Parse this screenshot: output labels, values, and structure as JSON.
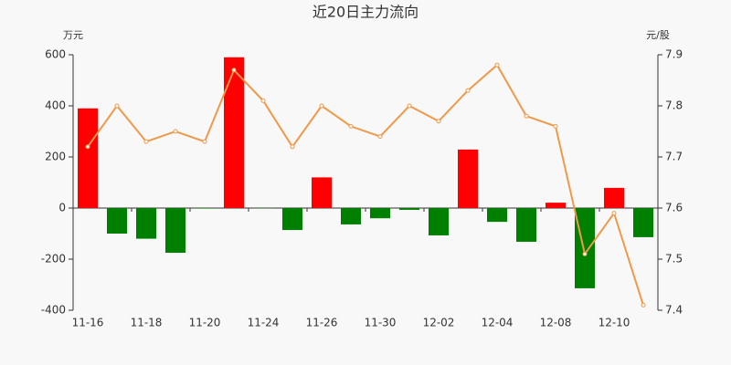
{
  "chart_data": {
    "type": "bar",
    "title": "近20日主力流向",
    "y_label": "万元",
    "y2_label": "元/股",
    "categories": [
      "11-16",
      null,
      "11-18",
      null,
      "11-20",
      null,
      "11-24",
      null,
      "11-26",
      null,
      "11-30",
      null,
      "12-02",
      null,
      "12-04",
      null,
      "12-08",
      null,
      "12-10",
      null
    ],
    "series": [
      {
        "type": "bar",
        "positive_color": "#ff0000",
        "negative_color": "#008000",
        "values": [
          390,
          -100,
          -120,
          -175,
          -2,
          590,
          -1,
          -86,
          120,
          -64,
          -40,
          -7,
          -107,
          229,
          -54,
          -132,
          21,
          -314,
          79,
          -114
        ]
      },
      {
        "type": "line",
        "axis": "y2",
        "color": "#f0994a",
        "values": [
          7.72,
          7.8,
          7.73,
          7.75,
          7.73,
          7.87,
          7.81,
          7.72,
          7.8,
          7.76,
          7.74,
          7.8,
          7.77,
          7.83,
          7.88,
          7.78,
          7.76,
          7.51,
          7.59,
          7.41
        ]
      }
    ],
    "ylim": [
      -400,
      600
    ],
    "yticks": [
      -400,
      -200,
      0,
      200,
      400,
      600
    ],
    "y2lim": [
      7.4,
      7.9
    ],
    "y2ticks": [
      7.4,
      7.5,
      7.6,
      7.7,
      7.8,
      7.9
    ]
  }
}
